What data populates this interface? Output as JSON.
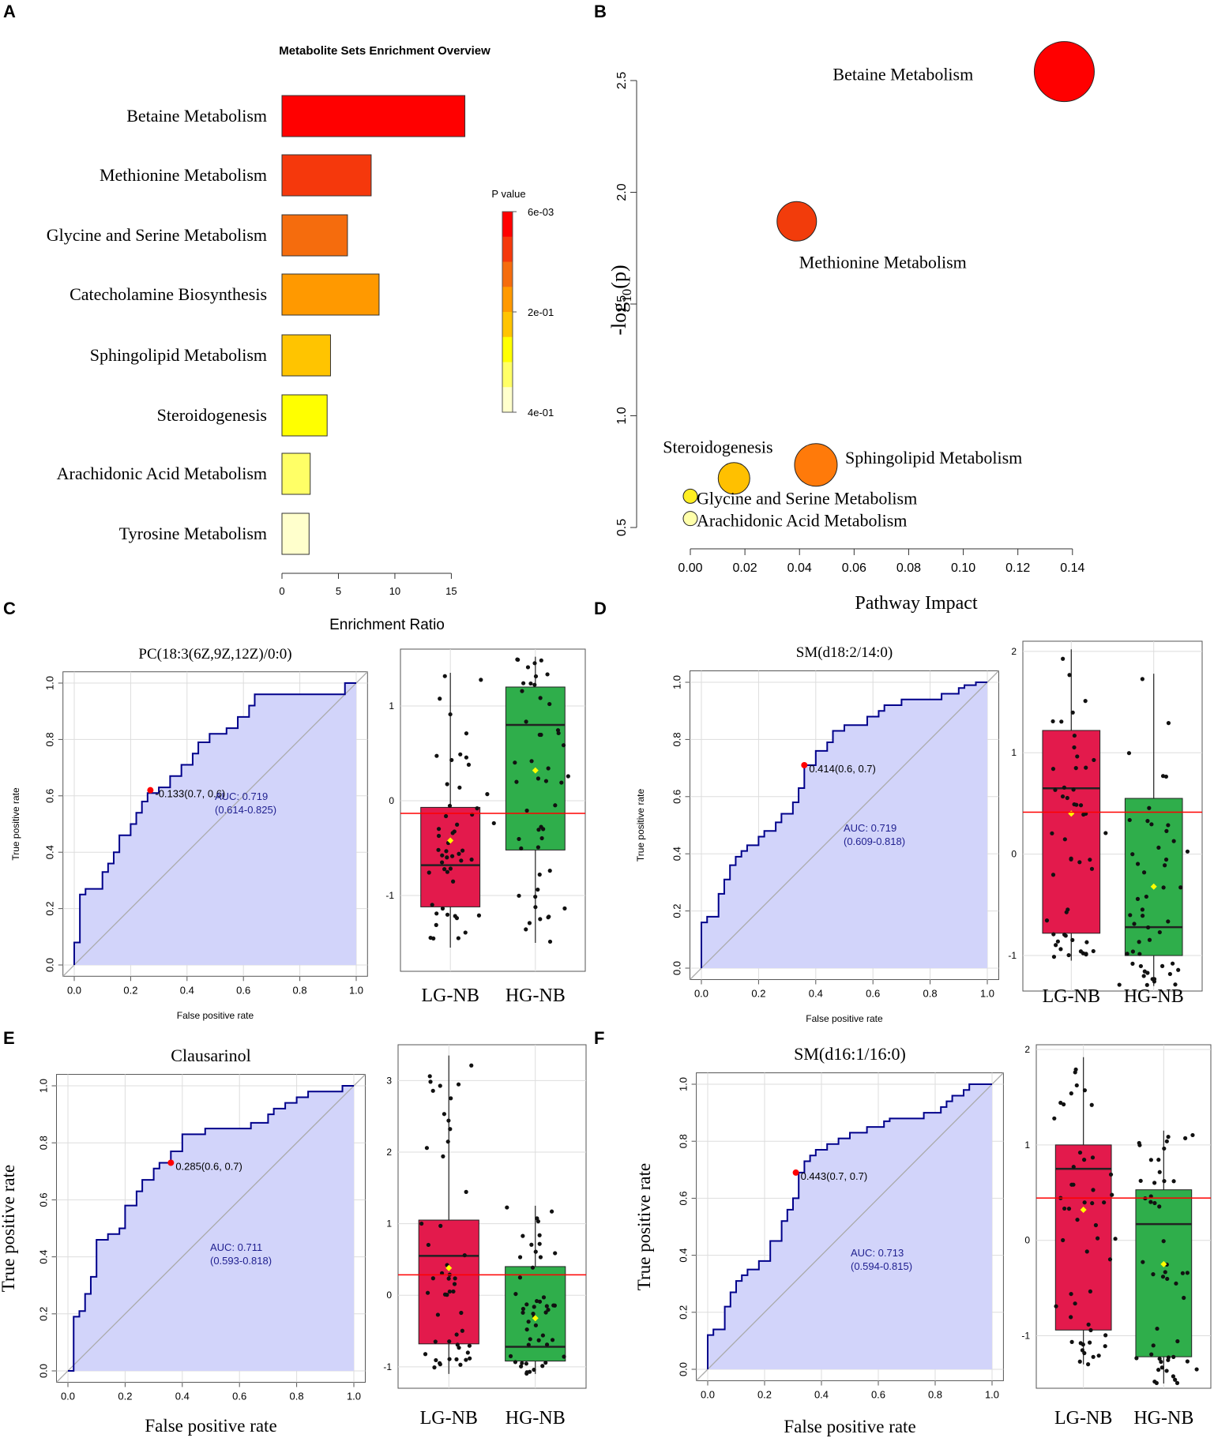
{
  "panels": {
    "A": "A",
    "B": "B",
    "C": "C",
    "D": "D",
    "E": "E",
    "F": "F"
  },
  "colors": {
    "red": "#ff0000",
    "redorange": "#f5380c",
    "orange": "#f56c0d",
    "amber": "#ff9900",
    "gold": "#ffc400",
    "yellow": "#ffff00",
    "paleyellow": "#ffff66",
    "cream": "#ffffcc",
    "roc_line": "#00008b",
    "roc_fill": "#d2d4fa",
    "grid": "#dddddd",
    "lg_box": "#e31a4c",
    "hg_box": "#2fae4b",
    "cutoff": "#ff0000",
    "mean": "#ffff00"
  },
  "chart_data": [
    {
      "id": "A",
      "type": "bar",
      "orientation": "horizontal",
      "title": "Metabolite Sets Enrichment Overview",
      "xlabel": "Enrichment Ratio",
      "xlim": [
        0,
        17
      ],
      "xticks": [
        0,
        5,
        10,
        15
      ],
      "categories": [
        "Betaine Metabolism",
        "Methionine Metabolism",
        "Glycine and Serine Metabolism",
        "Catecholamine Biosynthesis",
        "Sphingolipid  Metabolism",
        "Steroidogenesis",
        "Arachidonic Acid Metabolism",
        "Tyrosine Metabolism"
      ],
      "values": [
        16.2,
        7.9,
        5.8,
        8.6,
        4.3,
        4.0,
        2.5,
        2.4
      ],
      "bar_colors": [
        "#ff0000",
        "#f5380c",
        "#f56c0d",
        "#ff9900",
        "#ffc400",
        "#ffff00",
        "#ffff66",
        "#ffffcc"
      ],
      "legend": {
        "title": "P value",
        "ticks": [
          "6e-03",
          "2e-01",
          "4e-01"
        ]
      }
    },
    {
      "id": "B",
      "type": "scatter",
      "xlabel": "Pathway Impact",
      "ylabel_main": "-log",
      "ylabel_sub": "10",
      "ylabel_tail": "(p)",
      "xlim": [
        -0.005,
        0.145
      ],
      "ylim": [
        0.45,
        2.65
      ],
      "xticks": [
        "0.00",
        "0.02",
        "0.04",
        "0.06",
        "0.08",
        "0.10",
        "0.12",
        "0.14"
      ],
      "yticks": [
        "0.5",
        "1.0",
        "1.5",
        "2.0",
        "2.5"
      ],
      "points": [
        {
          "label": "Betaine Metabolism",
          "x": 0.137,
          "y": 2.54,
          "r": 38,
          "color": "#ff0000"
        },
        {
          "label": "Methionine Metabolism",
          "x": 0.039,
          "y": 1.87,
          "r": 25,
          "color": "#f23c0b"
        },
        {
          "label": "Sphingolipid  Metabolism",
          "x": 0.046,
          "y": 0.78,
          "r": 27,
          "color": "#ff7a0a"
        },
        {
          "label": "Steroidogenesis",
          "x": 0.016,
          "y": 0.72,
          "r": 20,
          "color": "#ffc000"
        },
        {
          "label": "Glycine and Serine Metabolism",
          "x": 0.0,
          "y": 0.64,
          "r": 9,
          "color": "#ffee22"
        },
        {
          "label": "Arachidonic Acid Metabolism",
          "x": 0.0,
          "y": 0.54,
          "r": 9,
          "color": "#ffffaa"
        }
      ]
    },
    {
      "id": "C",
      "type": "line",
      "subtype": "roc_with_boxplot",
      "title": "PC(18:3(6Z,9Z,12Z)/0:0)",
      "xlabel": "False positive rate",
      "ylabel": "True positive rate",
      "ticks": [
        "0.0",
        "0.2",
        "0.4",
        "0.6",
        "0.8",
        "1.0"
      ],
      "roc_x": [
        0,
        0,
        0.02,
        0.02,
        0.04,
        0.04,
        0.1,
        0.1,
        0.12,
        0.12,
        0.14,
        0.14,
        0.16,
        0.16,
        0.2,
        0.2,
        0.22,
        0.22,
        0.24,
        0.24,
        0.26,
        0.26,
        0.3,
        0.3,
        0.34,
        0.34,
        0.38,
        0.38,
        0.42,
        0.42,
        0.44,
        0.44,
        0.48,
        0.48,
        0.54,
        0.54,
        0.58,
        0.58,
        0.62,
        0.62,
        0.64,
        0.64,
        0.96,
        0.96,
        1.0
      ],
      "roc_y": [
        0,
        0.08,
        0.08,
        0.25,
        0.25,
        0.27,
        0.27,
        0.33,
        0.33,
        0.36,
        0.36,
        0.4,
        0.4,
        0.46,
        0.46,
        0.5,
        0.5,
        0.54,
        0.54,
        0.58,
        0.58,
        0.61,
        0.61,
        0.63,
        0.63,
        0.67,
        0.67,
        0.71,
        0.71,
        0.75,
        0.75,
        0.79,
        0.79,
        0.82,
        0.82,
        0.84,
        0.84,
        0.88,
        0.88,
        0.92,
        0.92,
        0.96,
        0.96,
        1.0,
        1.0
      ],
      "cutoff_point": {
        "x": 0.27,
        "y": 0.62,
        "label": "-0.133(0.7, 0.6)"
      },
      "auc": "AUC: 0.719",
      "auc_ci": "(0.614-0.825)",
      "box": {
        "groups": [
          "LG-NB",
          "HG-NB"
        ],
        "ylim": [
          -1.8,
          1.6
        ],
        "yticks": [
          "-1",
          "0",
          "1"
        ],
        "stats": [
          {
            "q1": -1.12,
            "median": -0.68,
            "q3": -0.07,
            "lo": -1.55,
            "hi": 1.35,
            "mean": -0.42
          },
          {
            "q1": -0.52,
            "median": 0.8,
            "q3": 1.2,
            "lo": -1.5,
            "hi": 1.52,
            "mean": 0.32
          }
        ],
        "cutoff": -0.133
      }
    },
    {
      "id": "D",
      "type": "line",
      "subtype": "roc_with_boxplot",
      "title": "SM(d18:2/14:0)",
      "xlabel": "False positive rate",
      "ylabel": "True positive rate",
      "ticks": [
        "0.0",
        "0.2",
        "0.4",
        "0.6",
        "0.8",
        "1.0"
      ],
      "roc_x": [
        0,
        0,
        0.02,
        0.02,
        0.06,
        0.06,
        0.08,
        0.08,
        0.1,
        0.1,
        0.12,
        0.12,
        0.14,
        0.14,
        0.16,
        0.16,
        0.2,
        0.2,
        0.22,
        0.22,
        0.26,
        0.26,
        0.28,
        0.28,
        0.32,
        0.32,
        0.34,
        0.34,
        0.36,
        0.36,
        0.4,
        0.4,
        0.44,
        0.44,
        0.46,
        0.46,
        0.5,
        0.5,
        0.58,
        0.58,
        0.62,
        0.62,
        0.64,
        0.64,
        0.7,
        0.7,
        0.84,
        0.84,
        0.9,
        0.9,
        0.92,
        0.92,
        0.96,
        0.96,
        1.0
      ],
      "roc_y": [
        0,
        0.16,
        0.16,
        0.18,
        0.18,
        0.26,
        0.26,
        0.31,
        0.31,
        0.36,
        0.36,
        0.39,
        0.39,
        0.41,
        0.41,
        0.43,
        0.43,
        0.46,
        0.46,
        0.48,
        0.48,
        0.51,
        0.51,
        0.54,
        0.54,
        0.58,
        0.58,
        0.63,
        0.63,
        0.71,
        0.71,
        0.76,
        0.76,
        0.79,
        0.79,
        0.83,
        0.83,
        0.85,
        0.85,
        0.88,
        0.88,
        0.9,
        0.9,
        0.92,
        0.92,
        0.94,
        0.94,
        0.96,
        0.96,
        0.98,
        0.98,
        0.99,
        0.99,
        1.0,
        1.0
      ],
      "cutoff_point": {
        "x": 0.36,
        "y": 0.71,
        "label": "0.414(0.6, 0.7)"
      },
      "auc": "AUC: 0.719",
      "auc_ci": "(0.609-0.818)",
      "box": {
        "groups": [
          "LG-NB",
          "HG-NB"
        ],
        "ylim": [
          -1.35,
          2.1
        ],
        "yticks": [
          "-1",
          "0",
          "1",
          "2"
        ],
        "stats": [
          {
            "q1": -0.78,
            "median": 0.65,
            "q3": 1.22,
            "lo": -1.05,
            "hi": 2.02,
            "mean": 0.4
          },
          {
            "q1": -1.0,
            "median": -0.72,
            "q3": 0.55,
            "lo": -1.3,
            "hi": 1.78,
            "mean": -0.32
          }
        ],
        "cutoff": 0.414
      }
    },
    {
      "id": "E",
      "type": "line",
      "subtype": "roc_with_boxplot",
      "title": "Clausarinol",
      "xlabel": "False positive rate",
      "ylabel": "True positive rate",
      "ticks": [
        "0.0",
        "0.2",
        "0.4",
        "0.6",
        "0.8",
        "1.0"
      ],
      "roc_x": [
        0,
        0.02,
        0.02,
        0.04,
        0.04,
        0.06,
        0.06,
        0.08,
        0.08,
        0.1,
        0.1,
        0.14,
        0.14,
        0.18,
        0.18,
        0.2,
        0.2,
        0.24,
        0.24,
        0.26,
        0.26,
        0.3,
        0.3,
        0.32,
        0.32,
        0.34,
        0.34,
        0.36,
        0.36,
        0.4,
        0.4,
        0.48,
        0.48,
        0.64,
        0.64,
        0.7,
        0.7,
        0.72,
        0.72,
        0.76,
        0.76,
        0.8,
        0.8,
        0.84,
        0.84,
        0.9,
        0.9,
        0.96,
        0.96,
        1.0
      ],
      "roc_y": [
        0.0,
        0.0,
        0.19,
        0.19,
        0.21,
        0.21,
        0.27,
        0.27,
        0.33,
        0.33,
        0.46,
        0.46,
        0.48,
        0.48,
        0.5,
        0.5,
        0.58,
        0.58,
        0.63,
        0.63,
        0.67,
        0.67,
        0.71,
        0.71,
        0.73,
        0.73,
        0.73,
        0.73,
        0.77,
        0.77,
        0.83,
        0.83,
        0.85,
        0.85,
        0.87,
        0.87,
        0.9,
        0.9,
        0.92,
        0.92,
        0.94,
        0.94,
        0.96,
        0.96,
        0.98,
        0.98,
        0.98,
        0.98,
        1.0,
        1.0
      ],
      "cutoff_point": {
        "x": 0.36,
        "y": 0.73,
        "label": "0.285(0.6, 0.7)"
      },
      "auc": "AUC: 0.711",
      "auc_ci": "(0.593-0.818)",
      "box": {
        "groups": [
          "LG-NB",
          "HG-NB"
        ],
        "ylim": [
          -1.3,
          3.5
        ],
        "yticks": [
          "-1",
          "0",
          "1",
          "2",
          "3"
        ],
        "stats": [
          {
            "q1": -0.68,
            "median": 0.55,
            "q3": 1.05,
            "lo": -1.1,
            "hi": 3.35,
            "mean": 0.38
          },
          {
            "q1": -0.92,
            "median": -0.72,
            "q3": 0.4,
            "lo": -1.1,
            "hi": 1.25,
            "mean": -0.32
          }
        ],
        "cutoff": 0.285
      }
    },
    {
      "id": "F",
      "type": "line",
      "subtype": "roc_with_boxplot",
      "title": "SM(d16:1/16:0)",
      "xlabel": "False positive rate",
      "ylabel": "True positive rate",
      "ticks": [
        "0.0",
        "0.2",
        "0.4",
        "0.6",
        "0.8",
        "1.0"
      ],
      "roc_x": [
        0,
        0,
        0.02,
        0.02,
        0.06,
        0.06,
        0.08,
        0.08,
        0.1,
        0.1,
        0.12,
        0.12,
        0.14,
        0.14,
        0.18,
        0.18,
        0.22,
        0.22,
        0.26,
        0.26,
        0.28,
        0.28,
        0.3,
        0.3,
        0.32,
        0.32,
        0.34,
        0.34,
        0.36,
        0.36,
        0.38,
        0.38,
        0.42,
        0.42,
        0.46,
        0.46,
        0.5,
        0.5,
        0.56,
        0.56,
        0.62,
        0.62,
        0.64,
        0.64,
        0.7,
        0.7,
        0.76,
        0.76,
        0.82,
        0.82,
        0.84,
        0.84,
        0.86,
        0.86,
        0.9,
        0.9,
        0.92,
        0.92,
        1.0
      ],
      "roc_y": [
        0,
        0.12,
        0.12,
        0.14,
        0.14,
        0.22,
        0.22,
        0.27,
        0.27,
        0.31,
        0.31,
        0.33,
        0.33,
        0.35,
        0.35,
        0.38,
        0.38,
        0.45,
        0.45,
        0.52,
        0.52,
        0.56,
        0.56,
        0.6,
        0.6,
        0.69,
        0.69,
        0.73,
        0.73,
        0.75,
        0.75,
        0.77,
        0.77,
        0.79,
        0.79,
        0.81,
        0.81,
        0.83,
        0.83,
        0.85,
        0.85,
        0.87,
        0.87,
        0.88,
        0.88,
        0.88,
        0.88,
        0.9,
        0.9,
        0.92,
        0.92,
        0.94,
        0.94,
        0.96,
        0.96,
        0.98,
        0.98,
        1.0,
        1.0
      ],
      "cutoff_point": {
        "x": 0.31,
        "y": 0.69,
        "label": "0.443(0.7, 0.7)"
      },
      "auc": "AUC: 0.713",
      "auc_ci": "(0.594-0.815)",
      "box": {
        "groups": [
          "LG-NB",
          "HG-NB"
        ],
        "ylim": [
          -1.55,
          2.05
        ],
        "yticks": [
          "-1",
          "0",
          "1",
          "2"
        ],
        "stats": [
          {
            "q1": -0.94,
            "median": 0.75,
            "q3": 1.0,
            "lo": -1.3,
            "hi": 1.92,
            "mean": 0.32
          },
          {
            "q1": -1.22,
            "median": 0.17,
            "q3": 0.53,
            "lo": -1.5,
            "hi": 1.15,
            "mean": -0.25
          }
        ],
        "cutoff": 0.443
      }
    }
  ]
}
